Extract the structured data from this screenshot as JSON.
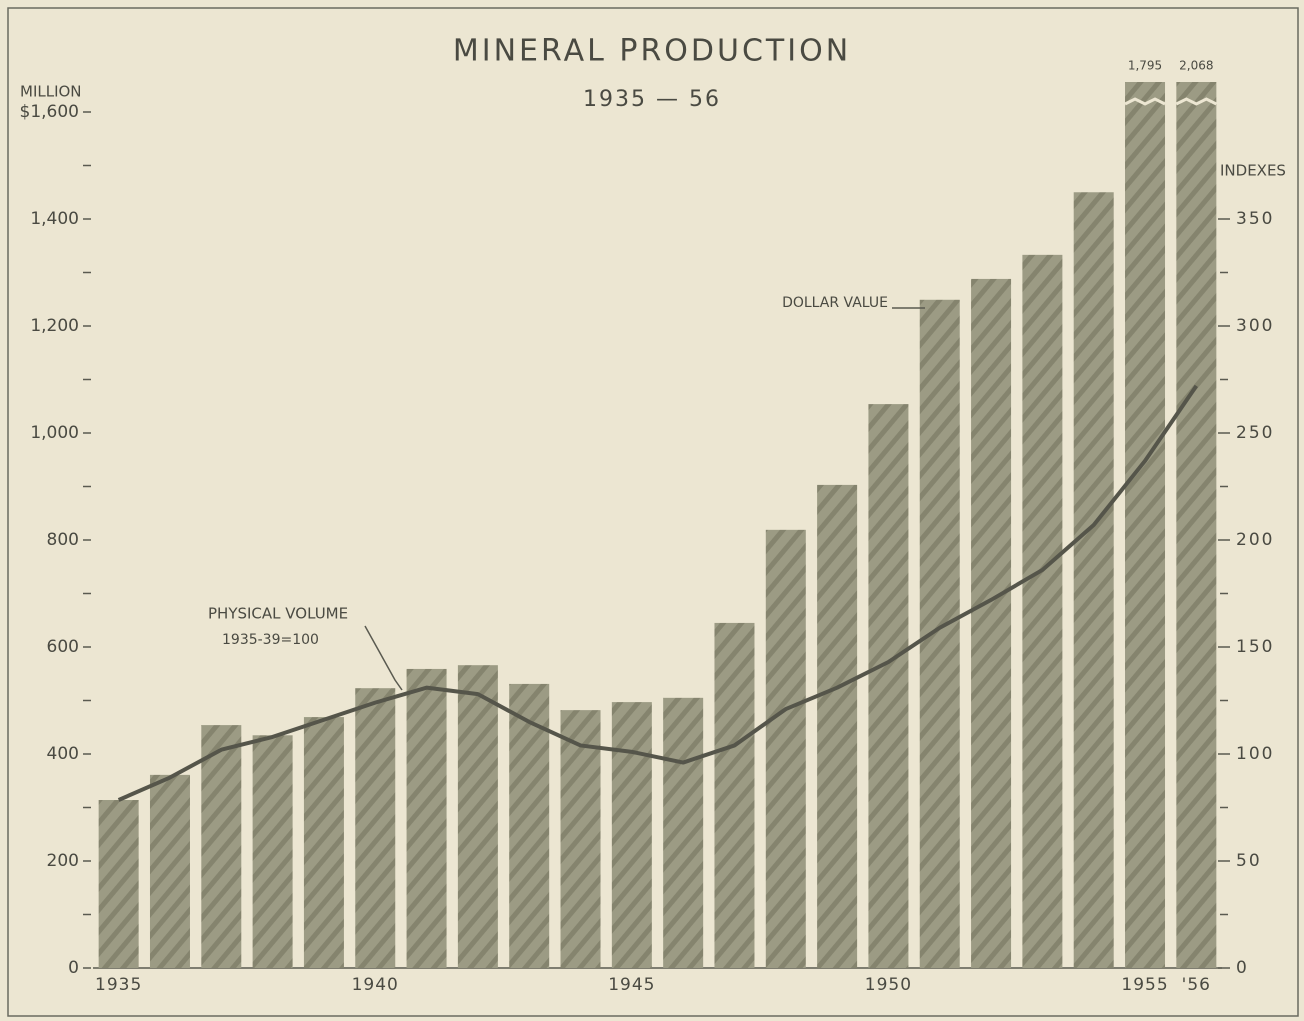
{
  "chart_data": {
    "type": "bar_line",
    "title": "MINERAL PRODUCTION",
    "subtitle": "1935 — 56",
    "y_label": "MILLION",
    "y2_label": "INDEXES",
    "annotations": [
      "1935-39=100"
    ],
    "categories": [
      "1935",
      null,
      null,
      null,
      null,
      "1940",
      null,
      null,
      null,
      null,
      "1945",
      null,
      null,
      null,
      null,
      "1950",
      null,
      null,
      null,
      null,
      "1955",
      "'56"
    ],
    "series": [
      {
        "name": "DOLLAR VALUE",
        "type": "bar",
        "color": "#9c9b84",
        "values": [
          314,
          361,
          454,
          435,
          469,
          523,
          559,
          566,
          531,
          482,
          497,
          505,
          645,
          819,
          903,
          1054,
          1249,
          1288,
          1333,
          1450,
          1795,
          2068
        ],
        "value_labels": [
          null,
          null,
          null,
          null,
          null,
          null,
          null,
          null,
          null,
          null,
          null,
          null,
          null,
          null,
          null,
          null,
          null,
          null,
          null,
          null,
          "1,795",
          "2,068"
        ]
      },
      {
        "name": "PHYSICAL VOLUME",
        "type": "line",
        "axis": "y2",
        "color": "#55554a",
        "values": [
          78.5,
          89,
          102,
          108,
          116,
          124,
          131,
          128,
          115,
          104,
          101,
          96,
          104,
          121,
          131,
          143,
          159,
          172,
          186,
          207,
          237,
          272
        ]
      }
    ],
    "ylim": [
      0,
      1600
    ],
    "yticks": [
      0,
      200,
      400,
      600,
      800,
      {
        "value": 1000,
        "label": "1,000"
      },
      {
        "value": 1200,
        "label": "1,200"
      },
      {
        "value": 1400,
        "label": "1,400"
      },
      {
        "value": 1600,
        "label": "$1,600"
      }
    ],
    "minor_yticks": [
      100,
      300,
      500,
      700,
      900,
      1100,
      1300,
      1500
    ],
    "y2lim": [
      0,
      400
    ],
    "y2ticks": [
      0,
      50,
      100,
      150,
      200,
      250,
      300,
      350
    ],
    "minor_y2ticks": [
      25,
      75,
      125,
      175,
      225,
      275,
      325
    ]
  }
}
